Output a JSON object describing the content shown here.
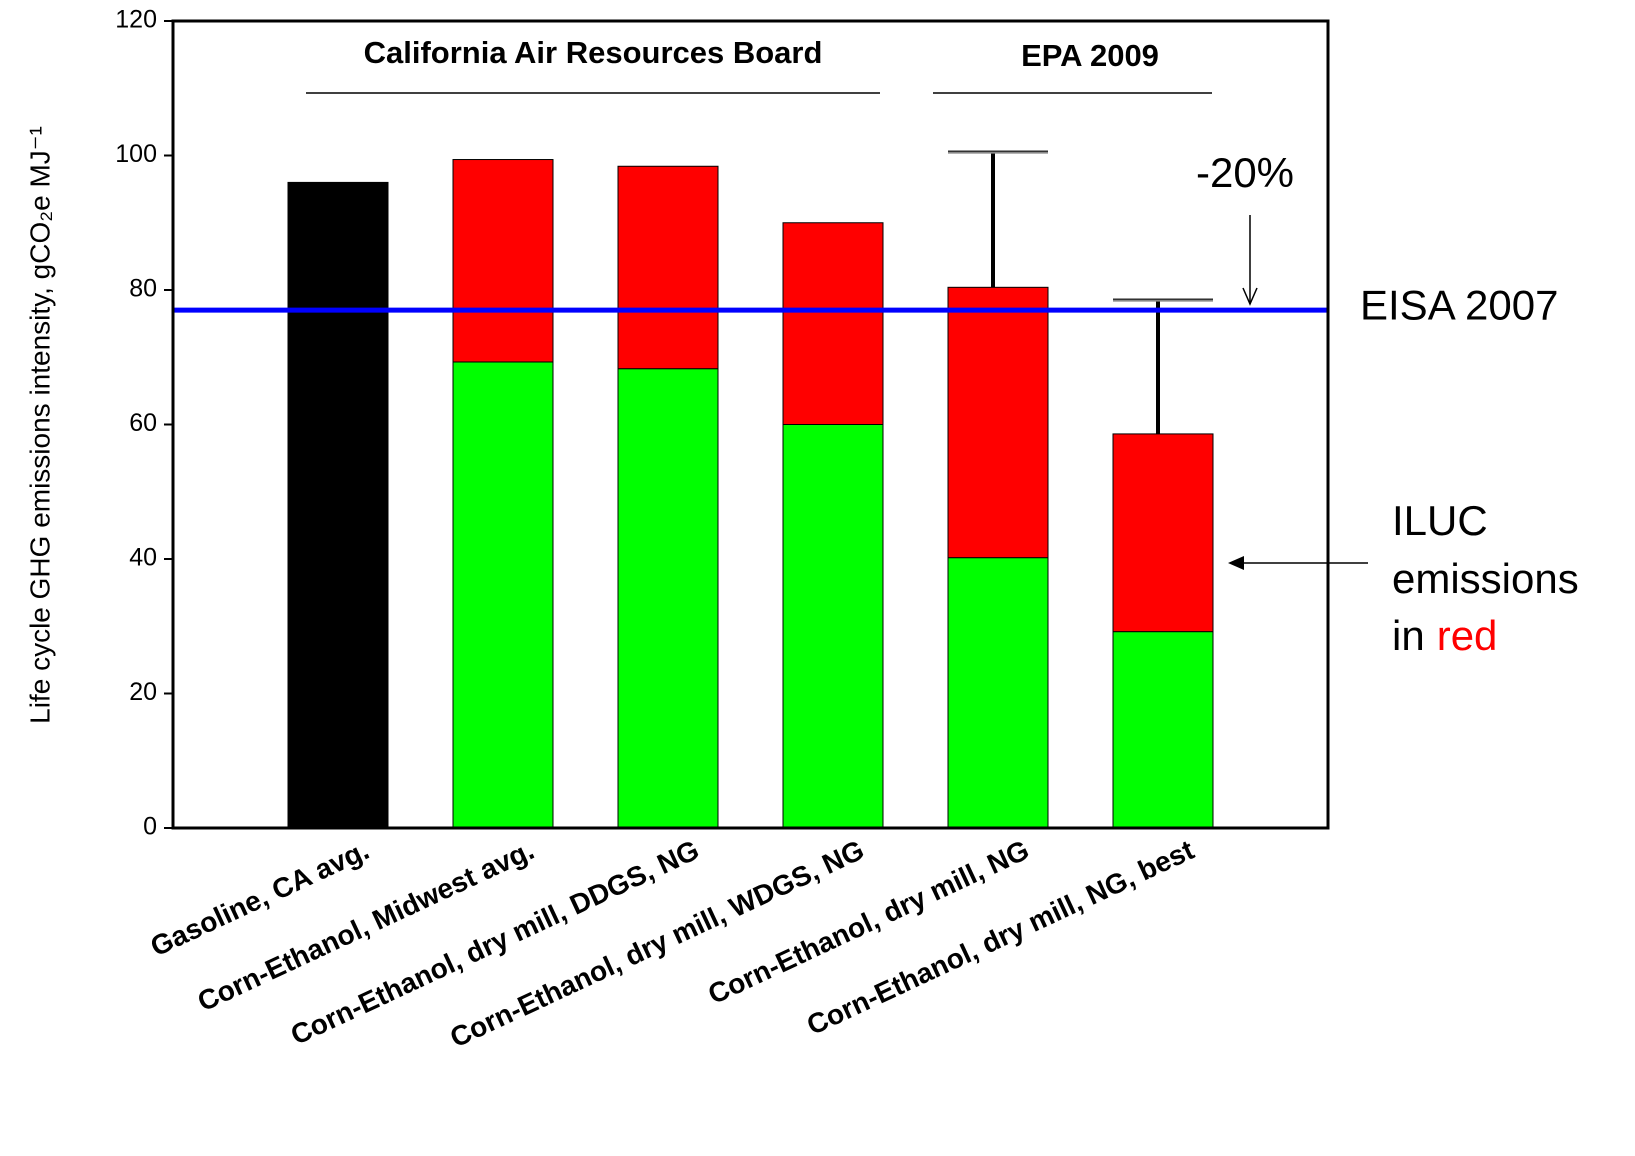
{
  "chart_data": {
    "type": "stacked_bar",
    "y_label": "Life cycle GHG emissions intensity, gCO₂e MJ⁻¹",
    "categories": [
      "Gasoline, CA avg.",
      "Corn-Ethanol, Midwest avg.",
      "Corn-Ethanol, dry mill, DDGS, NG",
      "Corn-Ethanol, dry mill, WDGS, NG",
      "Corn-Ethanol, dry mill, NG",
      "Corn-Ethanol, dry mill, NG, best"
    ],
    "series": [
      {
        "color": "#000000",
        "values": [
          96,
          null,
          null,
          null,
          null,
          null
        ]
      },
      {
        "color": "#00ff00",
        "values": [
          null,
          69.3,
          68.3,
          60,
          40.2,
          29.2
        ]
      },
      {
        "color": "#ff0000",
        "values": [
          null,
          30.1,
          30.1,
          30,
          40.2,
          29.4
        ],
        "errors": [
          null,
          null,
          null,
          null,
          20.1,
          19.9
        ]
      }
    ],
    "ylim": [
      0,
      120
    ],
    "yticks": [
      0,
      20,
      40,
      60,
      80,
      100,
      120
    ],
    "reference_lines": [
      {
        "value": 77,
        "label": "EISA 2007",
        "color": "#0000ff"
      }
    ],
    "group_labels": [
      "California Air Resources Board",
      "EPA 2009"
    ],
    "annotations": {
      "reduction": "-20%",
      "iluc": [
        "ILUC",
        "emissions",
        "in"
      ],
      "iluc_highlight": "red"
    }
  }
}
